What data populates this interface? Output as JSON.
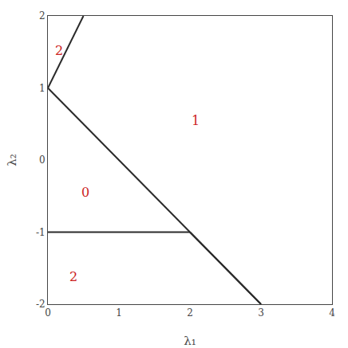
{
  "chart_data": {
    "type": "line",
    "xlabel": "λ₁",
    "ylabel": "λ₂",
    "xlim": [
      0,
      4
    ],
    "ylim": [
      -2,
      2
    ],
    "xticks": [
      0,
      1,
      2,
      3,
      4
    ],
    "yticks": [
      -2,
      -1,
      0,
      1,
      2
    ],
    "grid": false,
    "color": "#2a2a2a",
    "series": [
      {
        "x": [
          0,
          0.5
        ],
        "values": [
          1,
          2
        ]
      },
      {
        "x": [
          0,
          3
        ],
        "values": [
          1,
          -2
        ]
      },
      {
        "x": [
          0,
          2
        ],
        "values": [
          -1,
          -1
        ]
      },
      {
        "x": [
          2,
          3
        ],
        "values": [
          -1,
          -2
        ]
      }
    ],
    "annotations": [
      {
        "text": "1",
        "x": 2.0,
        "y": 0.55,
        "color": "#cc2222"
      },
      {
        "text": "0",
        "x": 0.45,
        "y": -0.45,
        "color": "#cc2222"
      },
      {
        "text": "2",
        "x": 0.08,
        "y": 1.52,
        "color": "#cc2222"
      },
      {
        "text": "2",
        "x": 0.28,
        "y": -1.62,
        "color": "#cc2222"
      }
    ]
  }
}
